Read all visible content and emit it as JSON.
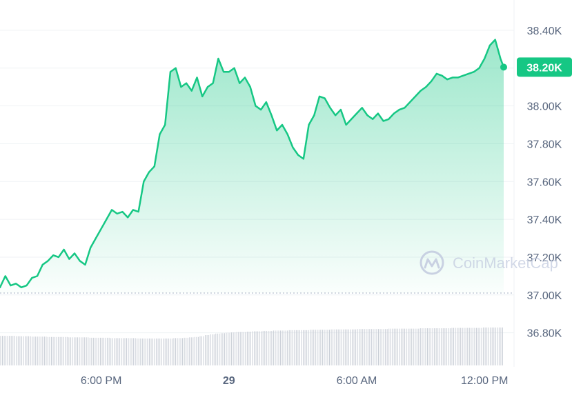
{
  "chart_data": {
    "type": "area",
    "title": "",
    "xlabel": "",
    "ylabel": "",
    "x_ticks": [
      "6:00 PM",
      "29",
      "6:00 AM",
      "12:00 PM"
    ],
    "x_ticks_bold": [
      false,
      true,
      false,
      false
    ],
    "x_tick_hours": [
      6,
      12,
      18,
      24
    ],
    "x_range_hours": [
      1.25,
      24.9
    ],
    "y_ticks": [
      "38.40K",
      "38.20K",
      "38.00K",
      "37.80K",
      "37.60K",
      "37.40K",
      "37.20K",
      "37.00K",
      "36.80K"
    ],
    "y_tick_values": [
      38400,
      38200,
      38000,
      37800,
      37600,
      37400,
      37200,
      37000,
      36800
    ],
    "ylim": [
      36620,
      38560
    ],
    "reference_line": 37010,
    "current_price_label": "38.20K",
    "current_price": 38205,
    "colors": {
      "line": "#16c784",
      "fill_top": "#16c784",
      "volume": "#c9ced6",
      "grid": "#eff2f5",
      "axis_text": "#58667e",
      "reference": "#a6b0c3",
      "watermark": "#c5cde0"
    },
    "series": [
      {
        "x_hours": [
          1.25,
          1.5,
          1.75,
          2.0,
          2.25,
          2.5,
          2.75,
          3.0,
          3.25,
          3.5,
          3.75,
          4.0,
          4.25,
          4.5,
          4.75,
          5.0,
          5.25,
          5.5,
          5.75,
          6.0,
          6.25,
          6.5,
          6.75,
          7.0,
          7.25,
          7.5,
          7.75,
          8.0,
          8.25,
          8.5,
          8.75,
          9.0,
          9.25,
          9.5,
          9.75,
          10.0,
          10.25,
          10.5,
          10.75,
          11.0,
          11.25,
          11.5,
          11.75,
          12.0,
          12.25,
          12.5,
          12.75,
          13.0,
          13.25,
          13.5,
          13.75,
          14.0,
          14.25,
          14.5,
          14.75,
          15.0,
          15.25,
          15.5,
          15.75,
          16.0,
          16.25,
          16.5,
          16.75,
          17.0,
          17.25,
          17.5,
          17.75,
          18.0,
          18.25,
          18.5,
          18.75,
          19.0,
          19.25,
          19.5,
          19.75,
          20.0,
          20.25,
          20.5,
          20.75,
          21.0,
          21.25,
          21.5,
          21.75,
          22.0,
          22.25,
          22.5,
          22.75,
          23.0,
          23.25,
          23.5,
          23.75,
          24.0,
          24.25,
          24.5,
          24.75,
          24.9
        ],
        "values": [
          37040,
          37100,
          37050,
          37060,
          37040,
          37050,
          37090,
          37100,
          37160,
          37180,
          37210,
          37200,
          37240,
          37190,
          37220,
          37180,
          37160,
          37250,
          37300,
          37350,
          37400,
          37450,
          37430,
          37440,
          37410,
          37450,
          37440,
          37600,
          37650,
          37680,
          37850,
          37900,
          38180,
          38200,
          38100,
          38120,
          38080,
          38150,
          38050,
          38100,
          38120,
          38250,
          38180,
          38180,
          38200,
          38120,
          38150,
          38100,
          38000,
          37980,
          38020,
          37950,
          37870,
          37900,
          37850,
          37780,
          37740,
          37720,
          37900,
          37950,
          38050,
          38040,
          37990,
          37950,
          37980,
          37900,
          37930,
          37960,
          37990,
          37950,
          37930,
          37960,
          37920,
          37930,
          37960,
          37980,
          37990,
          38020,
          38050,
          38080,
          38100,
          38130,
          38170,
          38160,
          38140,
          38150,
          38150,
          38160,
          38170,
          38180,
          38200,
          38250,
          38320,
          38350,
          38250,
          38205
        ]
      }
    ],
    "volume_levels": [
      0.78,
      0.78,
      0.78,
      0.77,
      0.77,
      0.77,
      0.76,
      0.76,
      0.76,
      0.75,
      0.75,
      0.75,
      0.75,
      0.74,
      0.74,
      0.74,
      0.74,
      0.73,
      0.73,
      0.73,
      0.73,
      0.72,
      0.72,
      0.72,
      0.72,
      0.72,
      0.71,
      0.71,
      0.71,
      0.71,
      0.71,
      0.71,
      0.71,
      0.72,
      0.72,
      0.73,
      0.74,
      0.75,
      0.77,
      0.8,
      0.82,
      0.84,
      0.85,
      0.86,
      0.87,
      0.88,
      0.88,
      0.89,
      0.9,
      0.9,
      0.91,
      0.91,
      0.92,
      0.92,
      0.92,
      0.93,
      0.93,
      0.93,
      0.93,
      0.94,
      0.94,
      0.94,
      0.94,
      0.95,
      0.95,
      0.95,
      0.95,
      0.95,
      0.96,
      0.96,
      0.96,
      0.96,
      0.96,
      0.96,
      0.97,
      0.97,
      0.97,
      0.97,
      0.97,
      0.97,
      0.98,
      0.98,
      0.98,
      0.98,
      0.98,
      0.98,
      0.99,
      0.99,
      0.99,
      0.99,
      0.99,
      0.99,
      1.0,
      1.0,
      1.0,
      1.0
    ]
  },
  "watermark": {
    "text": "CoinMarketCap",
    "icon": "coinmarketcap-logo-icon"
  }
}
